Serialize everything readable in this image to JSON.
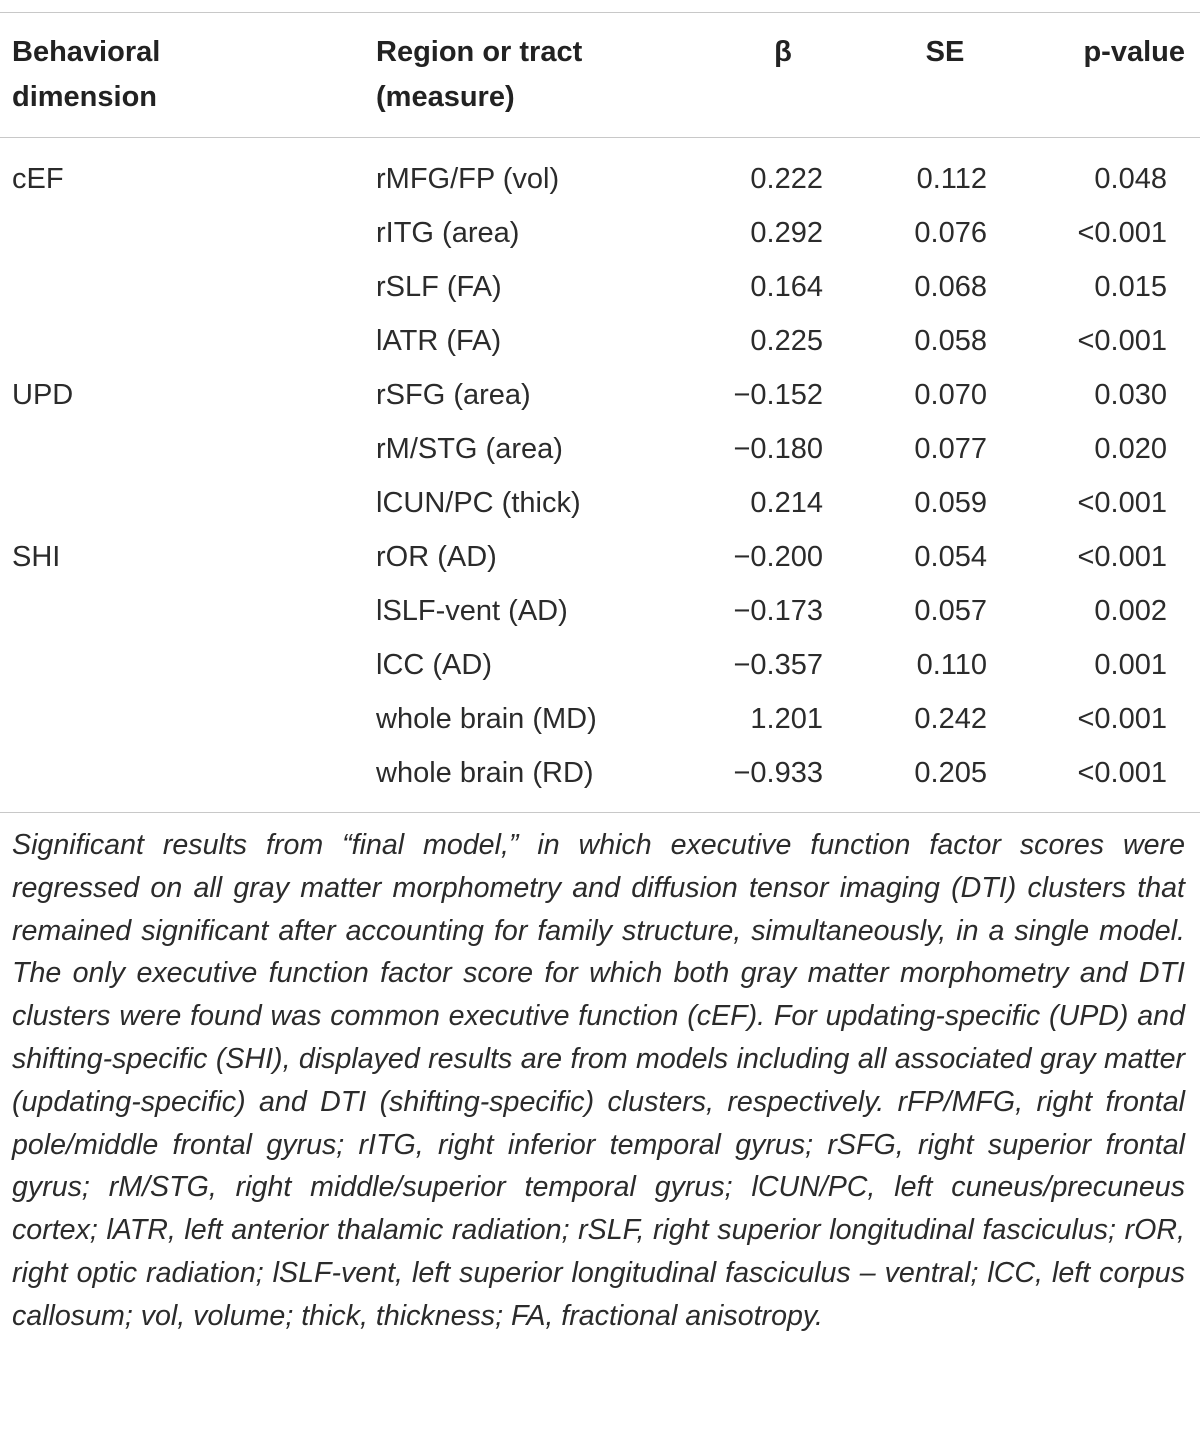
{
  "table": {
    "header": [
      "Behavioral dimension",
      "Region or tract (measure)",
      "β",
      "SE",
      "p-value"
    ],
    "groups": [
      {
        "dimension": "cEF",
        "rows": [
          [
            "rMFG/FP (vol)",
            "0.222",
            "0.112",
            "0.048"
          ],
          [
            "rITG (area)",
            "0.292",
            "0.076",
            "<0.001"
          ],
          [
            "rSLF (FA)",
            "0.164",
            "0.068",
            "0.015"
          ],
          [
            "lATR (FA)",
            "0.225",
            "0.058",
            "<0.001"
          ]
        ]
      },
      {
        "dimension": "UPD",
        "rows": [
          [
            "rSFG (area)",
            "−0.152",
            "0.070",
            "0.030"
          ],
          [
            "rM/STG (area)",
            "−0.180",
            "0.077",
            "0.020"
          ],
          [
            "lCUN/PC (thick)",
            "0.214",
            "0.059",
            "<0.001"
          ]
        ]
      },
      {
        "dimension": "SHI",
        "rows": [
          [
            "rOR (AD)",
            "−0.200",
            "0.054",
            "<0.001"
          ],
          [
            "lSLF-vent (AD)",
            "−0.173",
            "0.057",
            "0.002"
          ],
          [
            "lCC (AD)",
            "−0.357",
            "0.110",
            "0.001"
          ],
          [
            "whole brain (MD)",
            "1.201",
            "0.242",
            "<0.001"
          ],
          [
            "whole brain (RD)",
            "−0.933",
            "0.205",
            "<0.001"
          ]
        ]
      }
    ],
    "footnote": "Significant results from “final model,” in which executive function factor scores were regressed on all gray matter morphometry and diffusion tensor imaging (DTI) clusters that remained significant after accounting for family structure, simultaneously, in a single model. The only executive function factor score for which both gray matter morphometry and DTI clusters were found was common executive function (cEF). For updating-specific (UPD) and shifting-specific (SHI), displayed results are from models including all associated gray matter (updating-specific) and DTI (shifting-specific) clusters, respectively. rFP/MFG, right frontal pole/middle frontal gyrus; rITG, right inferior temporal gyrus; rSFG, right superior frontal gyrus; rM/STG, right middle/superior temporal gyrus; lCUN/PC, left cuneus/precuneus cortex; lATR, left anterior thalamic radiation; rSLF, right superior longitudinal fasciculus; rOR, right optic radiation; lSLF-vent, left superior longitudinal fasciculus – ventral; lCC, left corpus callosum; vol, volume; thick, thickness; FA, fractional anisotropy."
  }
}
